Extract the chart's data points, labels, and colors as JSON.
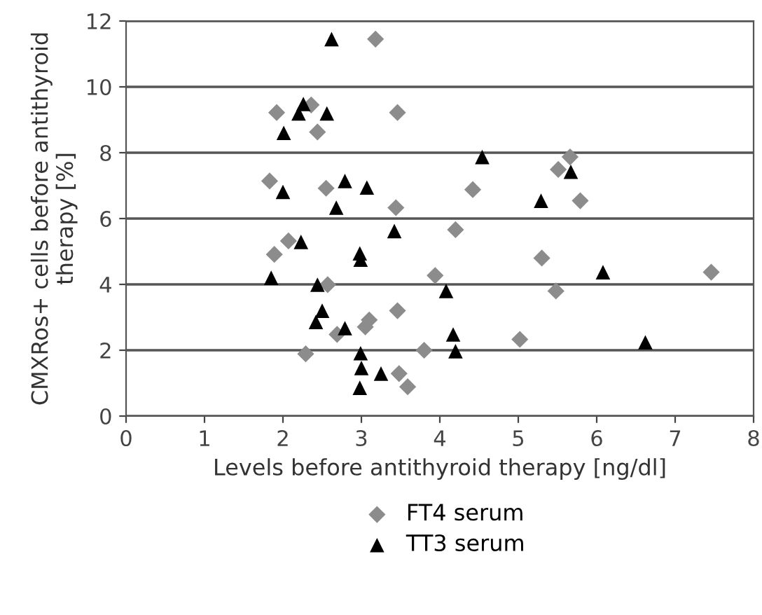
{
  "chart_data": {
    "type": "scatter",
    "xlabel": "Levels before antithyroid therapy [ng/dl]",
    "ylabel": "CMXRos+ cells before antithyroid\ntherapy [%]",
    "xlim": [
      0,
      8
    ],
    "xticks": [
      0,
      1,
      2,
      3,
      4,
      5,
      6,
      7,
      8
    ],
    "ylim": [
      0,
      12
    ],
    "yticks": [
      0,
      2,
      4,
      6,
      8,
      10,
      12
    ],
    "grid": "y",
    "legend": "bottom",
    "series": [
      {
        "name": "FT4 serum",
        "color": "#8c8c8c",
        "marker": "diamond",
        "x": [
          3.18,
          1.92,
          2.36,
          3.46,
          2.44,
          1.83,
          2.55,
          3.44,
          2.07,
          1.89,
          2.57,
          3.1,
          3.05,
          2.69,
          3.46,
          2.29,
          3.48,
          3.59,
          5.66,
          5.51,
          4.42,
          5.79,
          4.2,
          5.3,
          3.94,
          5.48,
          5.02,
          3.8,
          7.46
        ],
        "values": [
          11.45,
          9.22,
          9.45,
          9.22,
          8.63,
          7.14,
          6.92,
          6.33,
          5.32,
          4.91,
          3.99,
          2.92,
          2.71,
          2.48,
          3.2,
          1.89,
          1.29,
          0.89,
          7.87,
          7.49,
          6.88,
          6.54,
          5.66,
          4.8,
          4.27,
          3.8,
          2.33,
          2.0,
          4.37
        ]
      },
      {
        "name": "TT3 serum",
        "color": "#000000",
        "marker": "triangle",
        "x": [
          2.62,
          2.26,
          2.2,
          2.56,
          2.01,
          2.0,
          2.79,
          3.07,
          2.68,
          3.42,
          2.23,
          2.98,
          2.99,
          1.85,
          2.44,
          2.5,
          2.42,
          2.79,
          2.99,
          3.0,
          3.25,
          2.98,
          4.54,
          5.67,
          5.29,
          4.08,
          4.17,
          4.2,
          6.08,
          6.62
        ],
        "values": [
          11.45,
          9.48,
          9.19,
          9.19,
          8.6,
          6.81,
          7.14,
          6.94,
          6.33,
          5.62,
          5.29,
          4.94,
          4.75,
          4.2,
          3.99,
          3.2,
          2.86,
          2.67,
          1.91,
          1.46,
          1.29,
          0.86,
          7.87,
          7.42,
          6.54,
          3.8,
          2.48,
          1.97,
          4.37,
          2.24
        ]
      }
    ]
  }
}
